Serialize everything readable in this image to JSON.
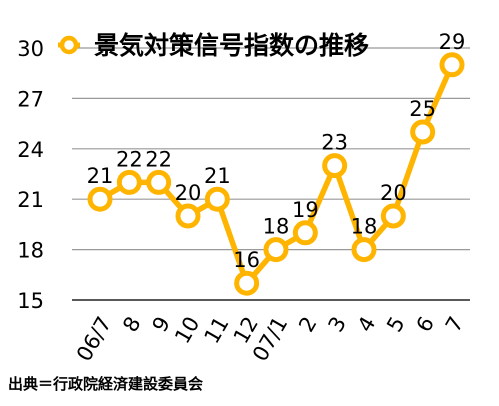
{
  "chart_data": {
    "type": "line",
    "title": "",
    "xlabel": "",
    "ylabel": "",
    "categories": [
      "06/7",
      "8",
      "9",
      "10",
      "11",
      "12",
      "07/1",
      "2",
      "3",
      "4",
      "5",
      "6",
      "7"
    ],
    "series": [
      {
        "name": "景気対策信号指数の推移",
        "values": [
          21,
          22,
          22,
          20,
          21,
          16,
          18,
          19,
          23,
          18,
          20,
          25,
          29
        ],
        "color": "#ffb400"
      }
    ],
    "yticks": [
      15,
      18,
      21,
      24,
      27,
      30
    ],
    "ylim": [
      15,
      30
    ],
    "grid": true,
    "legend": "top-center",
    "data_labels": true
  },
  "source_note": "出典＝行政院経済建設委員会"
}
